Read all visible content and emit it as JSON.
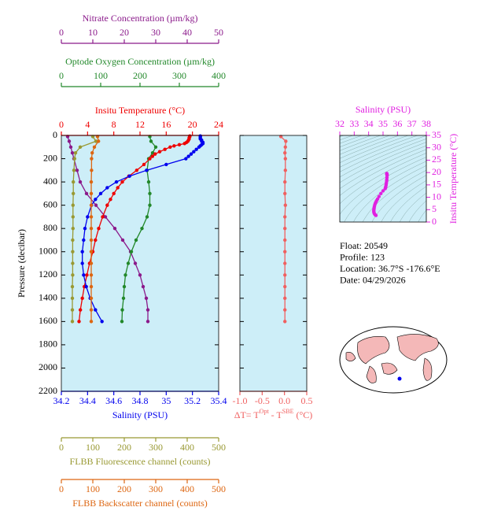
{
  "chart_data": [
    {
      "type": "profile",
      "y_label": "Pressure (decibar)",
      "ylim": [
        0,
        2200
      ],
      "yticks": [
        0,
        200,
        400,
        600,
        800,
        1000,
        1200,
        1400,
        1600,
        1800,
        2000,
        2200
      ],
      "series": [
        {
          "name": "Nitrate Concentration (µm/kg)",
          "color": "#8b1a8b",
          "xlim": [
            0,
            50
          ],
          "xticks": [
            0,
            10,
            20,
            30,
            40,
            50
          ],
          "pressure": [
            10,
            50,
            100,
            150,
            200,
            300,
            400,
            500,
            600,
            700,
            800,
            900,
            1000,
            1100,
            1200,
            1300,
            1400,
            1500,
            1600
          ],
          "values": [
            2,
            2.5,
            3,
            3.5,
            4,
            5,
            6,
            8,
            11,
            14,
            17,
            19.5,
            22,
            23.5,
            25,
            26,
            27,
            27.5,
            27.5
          ]
        },
        {
          "name": "Optode Oxygen Concentration (µm/kg)",
          "color": "#22882a",
          "xlim": [
            0,
            400
          ],
          "xticks": [
            0,
            100,
            200,
            300,
            400
          ],
          "pressure": [
            10,
            50,
            100,
            150,
            200,
            300,
            400,
            500,
            600,
            700,
            800,
            900,
            1000,
            1100,
            1200,
            1300,
            1400,
            1500,
            1600
          ],
          "values": [
            225,
            228,
            240,
            232,
            222,
            218,
            222,
            225,
            225,
            218,
            205,
            190,
            178,
            170,
            163,
            160,
            158,
            155,
            154
          ]
        },
        {
          "name": "Insitu Temperature (°C)",
          "color": "#ee0000",
          "xlim": [
            0,
            24
          ],
          "xticks": [
            0,
            4,
            8,
            12,
            16,
            20,
            24
          ],
          "pressure": [
            5,
            10,
            20,
            30,
            40,
            50,
            60,
            70,
            80,
            90,
            100,
            120,
            140,
            160,
            180,
            200,
            250,
            300,
            350,
            400,
            450,
            500,
            550,
            600,
            700,
            800,
            900,
            1000,
            1100,
            1200,
            1300,
            1400,
            1500,
            1600
          ],
          "values": [
            19.6,
            19.6,
            19.5,
            19.5,
            19.4,
            19.3,
            19.1,
            18.8,
            18.0,
            17.2,
            16.6,
            15.8,
            15.0,
            14.3,
            13.9,
            13.5,
            12.6,
            11.5,
            10.3,
            9.3,
            8.6,
            8.0,
            7.5,
            7.0,
            6.3,
            5.7,
            5.2,
            4.8,
            4.3,
            3.9,
            3.5,
            3.2,
            2.9,
            2.7
          ]
        },
        {
          "name": "Salinity (PSU)",
          "color": "#0000ee",
          "xlim": [
            34.2,
            35.4
          ],
          "xticks": [
            34.2,
            34.4,
            34.6,
            34.8,
            35.0,
            35.2,
            35.4
          ],
          "pressure": [
            5,
            10,
            20,
            30,
            40,
            50,
            60,
            70,
            80,
            90,
            100,
            120,
            140,
            160,
            180,
            200,
            250,
            300,
            350,
            400,
            450,
            500,
            550,
            600,
            700,
            800,
            900,
            1000,
            1100,
            1200,
            1300,
            1400,
            1500,
            1600
          ],
          "values": [
            35.26,
            35.26,
            35.26,
            35.26,
            35.27,
            35.27,
            35.28,
            35.28,
            35.27,
            35.26,
            35.25,
            35.23,
            35.21,
            35.19,
            35.17,
            35.15,
            35.0,
            34.85,
            34.72,
            34.62,
            34.55,
            34.5,
            34.46,
            34.43,
            34.4,
            34.38,
            34.37,
            34.36,
            34.36,
            34.37,
            34.39,
            34.42,
            34.46,
            34.51
          ]
        },
        {
          "name": "FLBB Fluorescence channel (counts)",
          "color": "#999933",
          "xlim": [
            0,
            500
          ],
          "xticks": [
            0,
            100,
            200,
            300,
            400,
            500
          ],
          "pressure": [
            10,
            50,
            100,
            150,
            200,
            300,
            400,
            500,
            600,
            700,
            800,
            900,
            1000,
            1100,
            1200,
            1300,
            1400,
            1500,
            1600
          ],
          "values": [
            100,
            110,
            60,
            45,
            42,
            40,
            38,
            38,
            37,
            37,
            37,
            36,
            36,
            36,
            36,
            35,
            35,
            35,
            35
          ]
        },
        {
          "name": "FLBB Backscatter channel (counts)",
          "color": "#dd6611",
          "xlim": [
            0,
            500
          ],
          "xticks": [
            0,
            100,
            200,
            300,
            400,
            500
          ],
          "pressure": [
            10,
            50,
            100,
            150,
            200,
            300,
            400,
            500,
            600,
            700,
            800,
            900,
            1000,
            1100,
            1200,
            1300,
            1400,
            1500,
            1600
          ],
          "values": [
            115,
            118,
            105,
            98,
            96,
            96,
            95,
            95,
            95,
            95,
            95,
            95,
            95,
            95,
            95,
            95,
            95,
            95,
            95
          ]
        }
      ]
    },
    {
      "type": "profile",
      "ylim": [
        0,
        2200
      ],
      "yticks": [
        0,
        200,
        400,
        600,
        800,
        1000,
        1200,
        1400,
        1600,
        1800,
        2000,
        2200
      ],
      "series": [
        {
          "name_parts": [
            "ΔT= T",
            "Opt",
            " - T",
            "SBE",
            " (°C)"
          ],
          "color": "#f06060",
          "xlim": [
            -1.0,
            0.5
          ],
          "xticks": [
            {
              "value": -1.0,
              "label": "-1.0"
            },
            -0.5,
            {
              "value": 0,
              "label": "0.0"
            },
            0.5
          ],
          "pressure": [
            10,
            50,
            100,
            150,
            200,
            300,
            400,
            500,
            600,
            700,
            800,
            900,
            1000,
            1100,
            1200,
            1300,
            1400,
            1500,
            1600
          ],
          "values": [
            -0.08,
            0.03,
            0.02,
            0.01,
            0.02,
            0.02,
            0.01,
            0.01,
            0.02,
            0.01,
            0.01,
            0.01,
            0.01,
            0.01,
            0.01,
            0.01,
            0.01,
            0.01,
            0.01
          ]
        }
      ]
    },
    {
      "type": "ts",
      "x_label": "Salinity (PSU)",
      "y_label": "Insitu Temperature (°C)",
      "color": "#e020e0",
      "xlim": [
        32,
        38
      ],
      "xticks": [
        32,
        33,
        34,
        35,
        36,
        37,
        38
      ],
      "ylim": [
        0,
        35
      ],
      "yticks": [
        0,
        5,
        10,
        15,
        20,
        25,
        30,
        35
      ],
      "x": [
        35.26,
        35.26,
        35.26,
        35.26,
        35.27,
        35.27,
        35.28,
        35.28,
        35.27,
        35.26,
        35.25,
        35.23,
        35.21,
        35.19,
        35.17,
        35.15,
        35.0,
        34.85,
        34.72,
        34.62,
        34.55,
        34.5,
        34.46,
        34.43,
        34.4,
        34.38,
        34.37,
        34.36,
        34.36,
        34.37,
        34.39,
        34.42,
        34.46,
        34.51
      ],
      "y": [
        19.6,
        19.6,
        19.5,
        19.5,
        19.4,
        19.3,
        19.1,
        18.8,
        18.0,
        17.2,
        16.6,
        15.8,
        15.0,
        14.3,
        13.9,
        13.5,
        12.6,
        11.5,
        10.3,
        9.3,
        8.6,
        8.0,
        7.5,
        7.0,
        6.3,
        5.7,
        5.2,
        4.8,
        4.3,
        3.9,
        3.5,
        3.2,
        2.9,
        2.7
      ]
    }
  ],
  "info": [
    "Float:  20549",
    "Profile:  123",
    "Location:  36.7°S  -176.6°E",
    "Date:  04/29/2026"
  ]
}
